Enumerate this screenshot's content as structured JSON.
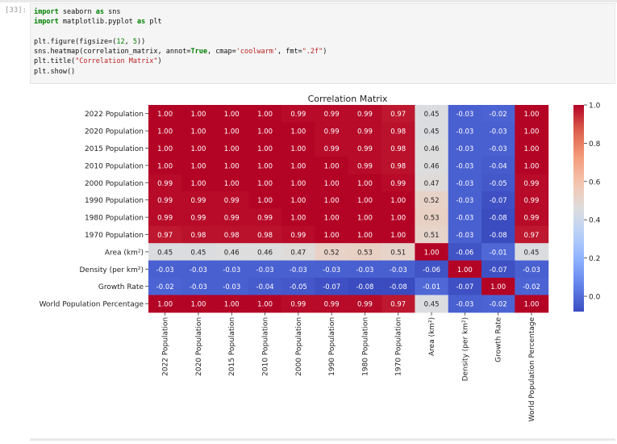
{
  "prompt": "[33]:",
  "code_lines": [
    [
      [
        "kw",
        "import"
      ],
      [
        "t",
        " seaborn "
      ],
      [
        "kw",
        "as"
      ],
      [
        "t",
        " sns"
      ]
    ],
    [
      [
        "kw",
        "import"
      ],
      [
        "t",
        " matplotlib.pyplot "
      ],
      [
        "kw",
        "as"
      ],
      [
        "t",
        " plt"
      ]
    ],
    [
      [
        "t",
        ""
      ]
    ],
    [
      [
        "t",
        "plt.figure(figsize=("
      ],
      [
        "num",
        "12"
      ],
      [
        "t",
        ", "
      ],
      [
        "num",
        "5"
      ],
      [
        "t",
        "))"
      ]
    ],
    [
      [
        "t",
        "sns.heatmap(correlation_matrix, annot="
      ],
      [
        "bool",
        "True"
      ],
      [
        "t",
        ", cmap="
      ],
      [
        "str",
        "'coolwarm'"
      ],
      [
        "t",
        ", fmt="
      ],
      [
        "str",
        "\".2f\""
      ],
      [
        "t",
        ")"
      ]
    ],
    [
      [
        "t",
        "plt.title("
      ],
      [
        "str",
        "\"Correlation Matrix\""
      ],
      [
        "t",
        ")"
      ]
    ],
    [
      [
        "t",
        "plt.show()"
      ]
    ]
  ],
  "chart_data": {
    "type": "heatmap",
    "title": "Correlation Matrix",
    "rows": [
      "2022 Population",
      "2020 Population",
      "2015 Population",
      "2010 Population",
      "2000 Population",
      "1990 Population",
      "1980 Population",
      "1970 Population",
      "Area (km²)",
      "Density (per km²)",
      "Growth Rate",
      "World Population Percentage"
    ],
    "columns": [
      "2022 Population",
      "2020 Population",
      "2015 Population",
      "2010 Population",
      "2000 Population",
      "1990 Population",
      "1980 Population",
      "1970 Population",
      "Area (km²)",
      "Density (per km²)",
      "Growth Rate",
      "World Population Percentage"
    ],
    "values": [
      [
        1.0,
        1.0,
        1.0,
        1.0,
        0.99,
        0.99,
        0.99,
        0.97,
        0.45,
        -0.03,
        -0.02,
        1.0
      ],
      [
        1.0,
        1.0,
        1.0,
        1.0,
        1.0,
        0.99,
        0.99,
        0.98,
        0.45,
        -0.03,
        -0.03,
        1.0
      ],
      [
        1.0,
        1.0,
        1.0,
        1.0,
        1.0,
        0.99,
        0.99,
        0.98,
        0.46,
        -0.03,
        -0.03,
        1.0
      ],
      [
        1.0,
        1.0,
        1.0,
        1.0,
        1.0,
        1.0,
        0.99,
        0.98,
        0.46,
        -0.03,
        -0.04,
        1.0
      ],
      [
        0.99,
        1.0,
        1.0,
        1.0,
        1.0,
        1.0,
        1.0,
        0.99,
        0.47,
        -0.03,
        -0.05,
        0.99
      ],
      [
        0.99,
        0.99,
        0.99,
        1.0,
        1.0,
        1.0,
        1.0,
        1.0,
        0.52,
        -0.03,
        -0.07,
        0.99
      ],
      [
        0.99,
        0.99,
        0.99,
        0.99,
        1.0,
        1.0,
        1.0,
        1.0,
        0.53,
        -0.03,
        -0.08,
        0.99
      ],
      [
        0.97,
        0.98,
        0.98,
        0.98,
        0.99,
        1.0,
        1.0,
        1.0,
        0.51,
        -0.03,
        -0.08,
        0.97
      ],
      [
        0.45,
        0.45,
        0.46,
        0.46,
        0.47,
        0.52,
        0.53,
        0.51,
        1.0,
        -0.06,
        -0.01,
        0.45
      ],
      [
        -0.03,
        -0.03,
        -0.03,
        -0.03,
        -0.03,
        -0.03,
        -0.03,
        -0.03,
        -0.06,
        1.0,
        -0.07,
        -0.03
      ],
      [
        -0.02,
        -0.03,
        -0.03,
        -0.04,
        -0.05,
        -0.07,
        -0.08,
        -0.08,
        -0.01,
        -0.07,
        1.0,
        -0.02
      ],
      [
        1.0,
        1.0,
        1.0,
        1.0,
        0.99,
        0.99,
        0.99,
        0.97,
        0.45,
        -0.03,
        -0.02,
        1.0
      ]
    ],
    "colormap": "coolwarm",
    "vmin": -0.08,
    "vmax": 1.0,
    "colorbar_ticks": [
      0.0,
      0.2,
      0.4,
      0.6,
      0.8,
      1.0
    ],
    "colorbar_tick_labels": [
      "0.0",
      "0.2",
      "0.4",
      "0.6",
      "0.8",
      "1.0"
    ]
  }
}
